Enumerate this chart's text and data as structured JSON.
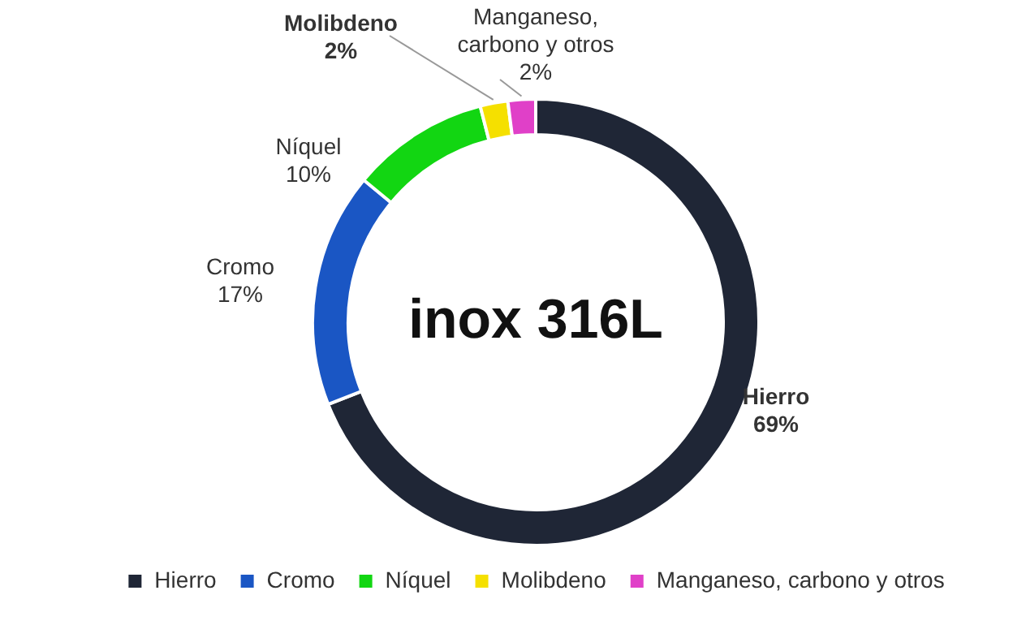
{
  "chart_data": {
    "type": "donut",
    "title": "inox 316L",
    "categories": [
      "Hierro",
      "Cromo",
      "Níquel",
      "Molibdeno",
      "Manganeso, carbono y otros"
    ],
    "values": [
      69,
      17,
      10,
      2,
      2
    ],
    "value_labels": [
      "69%",
      "17%",
      "10%",
      "2%",
      "2%"
    ],
    "colors": [
      "#1f2636",
      "#1a56c4",
      "#12d612",
      "#f5e000",
      "#e040c8"
    ],
    "legend": "bottom"
  }
}
